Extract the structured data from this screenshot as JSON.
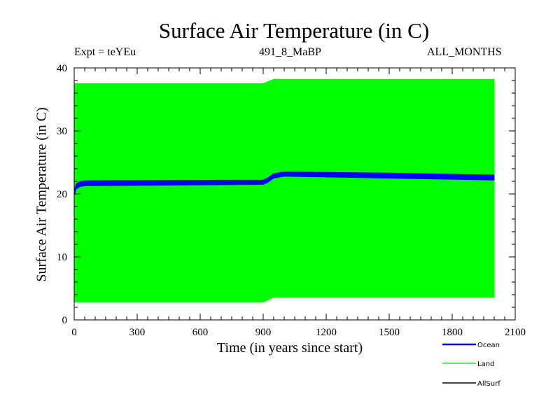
{
  "chart_data": {
    "type": "line",
    "title": "Surface Air Temperature (in C)",
    "subtitle_left": "Expt = teYEu",
    "subtitle_center": "491_8_MaBP",
    "subtitle_right": "ALL_MONTHS",
    "xlabel": "Time (in years since start)",
    "ylabel": "Surface Air Temperature (in C)",
    "xlim": [
      0,
      2100
    ],
    "ylim": [
      0,
      40
    ],
    "xticks": [
      0,
      300,
      600,
      900,
      1200,
      1500,
      1800,
      2100
    ],
    "yticks": [
      0,
      10,
      20,
      30,
      40
    ],
    "legend_position": "bottom-right",
    "series": [
      {
        "name": "Land",
        "color": "#00ff00",
        "band": true,
        "x": [
          0,
          900,
          950,
          2000
        ],
        "upper": [
          37.5,
          37.5,
          38.2,
          38.2
        ],
        "lower": [
          2.8,
          2.8,
          3.6,
          3.6
        ]
      },
      {
        "name": "Ocean",
        "color": "#0000ff",
        "band": true,
        "x": [
          0,
          10,
          30,
          60,
          900,
          920,
          950,
          1000,
          1500,
          2000
        ],
        "upper": [
          20.5,
          21.6,
          22.0,
          22.1,
          22.2,
          22.5,
          23.2,
          23.5,
          23.3,
          23.0
        ],
        "lower": [
          19.8,
          20.8,
          21.2,
          21.3,
          21.5,
          21.8,
          22.5,
          22.8,
          22.5,
          22.2
        ]
      },
      {
        "name": "AllSurf",
        "color": "#000000",
        "band": false,
        "x": [],
        "values": []
      }
    ]
  }
}
